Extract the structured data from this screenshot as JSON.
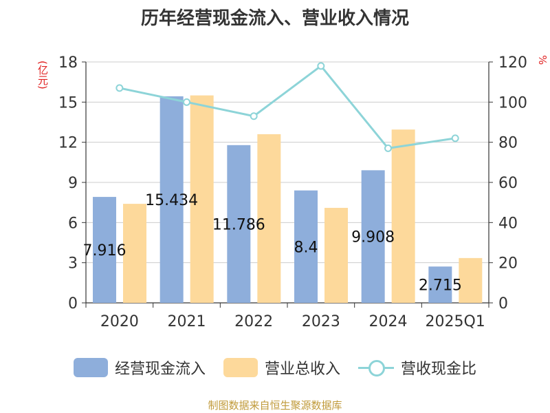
{
  "title": "历年经营现金流入、营业收入情况",
  "unit_left": "(亿元)",
  "unit_right": "%",
  "source": "制图数据来自恒生聚源数据库",
  "colors": {
    "cash": "#8eaedb",
    "revenue": "#fdd99b",
    "ratio": "#8dd4d8",
    "unit": "#e02020"
  },
  "legend": [
    {
      "name": "经营现金流入",
      "icon": "bar-swatch"
    },
    {
      "name": "营业总收入",
      "icon": "bar-swatch"
    },
    {
      "name": "营收现金比",
      "icon": "line-marker-swatch"
    }
  ],
  "chart_data": {
    "type": "bar",
    "categories": [
      "2020",
      "2021",
      "2022",
      "2023",
      "2024",
      "2025Q1"
    ],
    "series": [
      {
        "name": "经营现金流入",
        "type": "bar",
        "axis": "left",
        "values": [
          7.916,
          15.434,
          11.786,
          8.4,
          9.908,
          2.715
        ],
        "labels": [
          "7.916",
          "15.434",
          "11.786",
          "8.4",
          "9.908",
          "2.715"
        ]
      },
      {
        "name": "营业总收入",
        "type": "bar",
        "axis": "left",
        "values": [
          7.4,
          15.5,
          12.6,
          7.1,
          12.95,
          3.35
        ]
      },
      {
        "name": "营收现金比",
        "type": "line",
        "axis": "right",
        "values": [
          107,
          100,
          93,
          118,
          77,
          82
        ]
      }
    ],
    "y_left": {
      "min": 0,
      "max": 18,
      "ticks": [
        0,
        3,
        6,
        9,
        12,
        15,
        18
      ]
    },
    "y_right": {
      "min": 0,
      "max": 120,
      "ticks": [
        0,
        20,
        40,
        60,
        80,
        100,
        120
      ]
    },
    "grid": true,
    "legend_position": "bottom"
  }
}
